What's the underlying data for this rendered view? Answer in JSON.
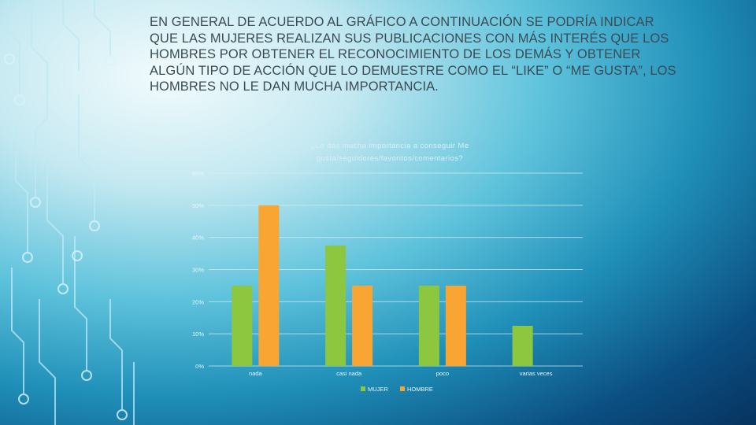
{
  "slide": {
    "text": "EN GENERAL DE ACUERDO AL GRÁFICO A CONTINUACIÓN SE PODRÍA INDICAR QUE LAS MUJERES REALIZAN SUS PUBLICACIONES CON MÁS INTERÉS QUE LOS HOMBRES POR OBTENER EL RECONOCIMIENTO DE LOS DEMÁS Y OBTENER ALGÚN TIPO DE ACCIÓN QUE LO DEMUESTRE COMO EL “LIKE” O “ME GUSTA”, LOS HOMBRES NO LE DAN MUCHA IMPORTANCIA."
  },
  "chart_data": {
    "type": "bar",
    "title": "¿Le das mucha importancia a conseguir Me gusta/seguidores/favoritos/comentarios?",
    "categories": [
      "nada",
      "casi nada",
      "poco",
      "varias veces"
    ],
    "series": [
      {
        "name": "MUJER",
        "color": "#8dc63f",
        "values": [
          25,
          37.5,
          25,
          12.5
        ]
      },
      {
        "name": "HOMBRE",
        "color": "#f9a533",
        "values": [
          50,
          25,
          25,
          0
        ]
      }
    ],
    "ylim": [
      0,
      60
    ],
    "yticks": [
      "0%",
      "10%",
      "20%",
      "30%",
      "40%",
      "50%",
      "60%"
    ],
    "grid": true,
    "legend": "bottom"
  }
}
